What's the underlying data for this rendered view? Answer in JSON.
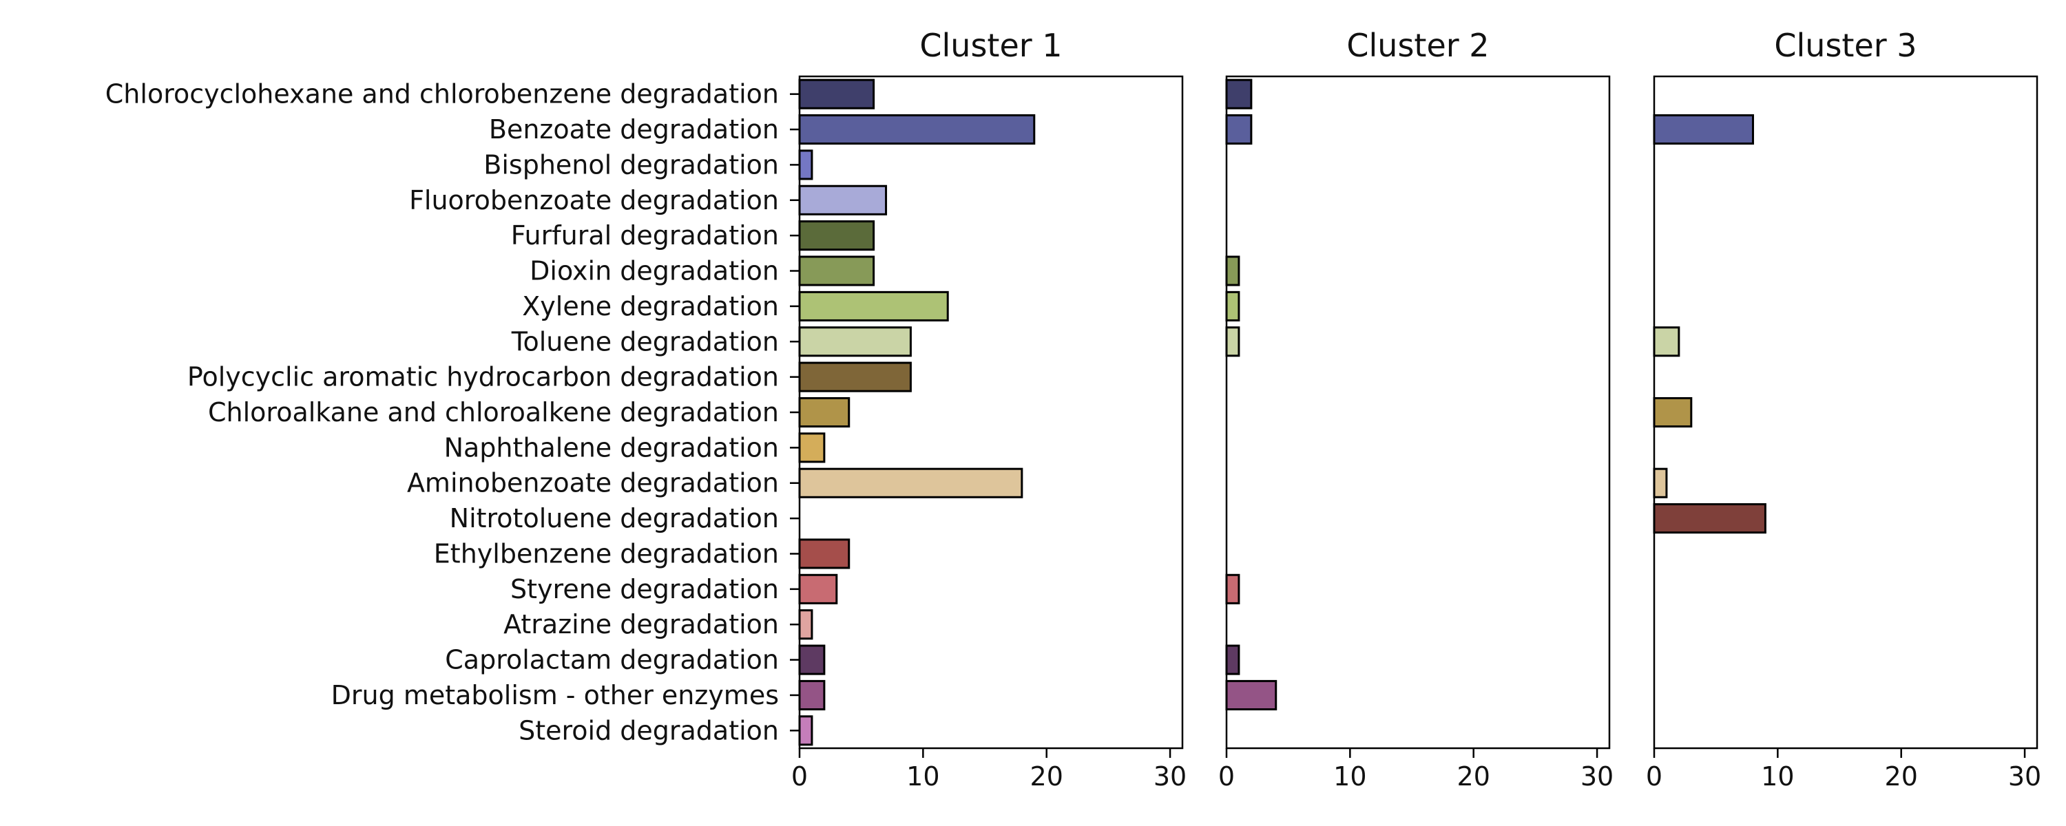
{
  "chart_data": {
    "type": "bar",
    "orientation": "horizontal",
    "categories": [
      "Chlorocyclohexane and chlorobenzene degradation",
      "Benzoate degradation",
      "Bisphenol degradation",
      "Fluorobenzoate degradation",
      "Furfural degradation",
      "Dioxin degradation",
      "Xylene degradation",
      "Toluene degradation",
      "Polycyclic aromatic hydrocarbon degradation",
      "Chloroalkane and chloroalkene degradation",
      "Naphthalene degradation",
      "Aminobenzoate degradation",
      "Nitrotoluene degradation",
      "Ethylbenzene degradation",
      "Styrene degradation",
      "Atrazine degradation",
      "Caprolactam degradation",
      "Drug metabolism - other enzymes",
      "Steroid degradation"
    ],
    "colors": [
      "#3f3f6b",
      "#5a5f9c",
      "#7477c4",
      "#a8aad8",
      "#5b6b3a",
      "#879a58",
      "#adc275",
      "#cad4a6",
      "#7f6638",
      "#b09449",
      "#d4ad5a",
      "#dec59b",
      "#7f403a",
      "#a54e4b",
      "#c86b72",
      "#e0a4a0",
      "#5e3a62",
      "#945486",
      "#c57eba"
    ],
    "panels": [
      {
        "title": "Cluster 1",
        "values": [
          6,
          19,
          1,
          7,
          6,
          6,
          12,
          9,
          9,
          4,
          2,
          18,
          0,
          4,
          3,
          1,
          2,
          2,
          1
        ]
      },
      {
        "title": "Cluster 2",
        "values": [
          2,
          2,
          0,
          0,
          0,
          1,
          1,
          1,
          0,
          0,
          0,
          0,
          0,
          0,
          1,
          0,
          1,
          4,
          0
        ]
      },
      {
        "title": "Cluster 3",
        "values": [
          0,
          8,
          0,
          0,
          0,
          0,
          0,
          2,
          0,
          3,
          0,
          1,
          9,
          0,
          0,
          0,
          0,
          0,
          0
        ]
      }
    ],
    "xlim": [
      0,
      31
    ],
    "xticks": [
      0,
      10,
      20,
      30
    ],
    "xlabel": "",
    "ylabel": "",
    "grid": false,
    "legend": "none"
  }
}
